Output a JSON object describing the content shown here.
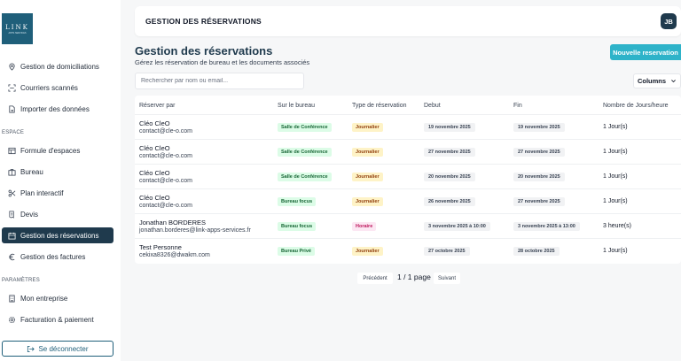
{
  "sidebar": {
    "logo_text": "LINK",
    "logo_sub": "APPS·SERVICES",
    "items_top": [
      {
        "label": "Gestion de domiciliations",
        "icon": "map-pin-icon"
      },
      {
        "label": "Courriers scannés",
        "icon": "scan-icon"
      },
      {
        "label": "Importer des données",
        "icon": "file-import-icon"
      }
    ],
    "section_espace": "ESPACE",
    "items_espace": [
      {
        "label": "Formule d'espaces",
        "icon": "grid-icon"
      },
      {
        "label": "Bureau",
        "icon": "briefcase-icon"
      },
      {
        "label": "Plan interactif",
        "icon": "scissors-icon"
      },
      {
        "label": "Devis",
        "icon": "receipt-icon"
      },
      {
        "label": "Gestion des réservations",
        "icon": "calendar-icon"
      },
      {
        "label": "Gestion des factures",
        "icon": "euro-icon"
      }
    ],
    "section_parametres": "PARAMÈTRES",
    "items_params": [
      {
        "label": "Mon entreprise",
        "icon": "building-icon"
      },
      {
        "label": "Facturation & paiement",
        "icon": "gear-icon"
      }
    ],
    "logout_label": "Se déconnecter"
  },
  "header": {
    "title": "GESTION DES RÉSERVATIONS",
    "avatar_initials": "JB"
  },
  "main": {
    "title": "Gestion des réservations",
    "subtitle": "Gérez les réservation de bureau et les documents associés",
    "new_button": "Nouvelle reservation",
    "search_placeholder": "Rechercher par nom ou email...",
    "columns_button": "Columns"
  },
  "table": {
    "headers": [
      "Réserver par",
      "Sur le bureau",
      "Type de réservation",
      "Debut",
      "Fin",
      "Nombre de Jours/heure"
    ],
    "rows": [
      {
        "name": "Cléo CleO",
        "email": "contact@cle-o.com",
        "bureau": "Salle de Conférence",
        "type": "Journalier",
        "debut": "19 novembre 2025",
        "fin": "19 novembre 2025",
        "duree": "1 Jour(s)"
      },
      {
        "name": "Cléo CleO",
        "email": "contact@cle-o.com",
        "bureau": "Salle de Conférence",
        "type": "Journalier",
        "debut": "27 novembre 2025",
        "fin": "27 novembre 2025",
        "duree": "1 Jour(s)"
      },
      {
        "name": "Cléo CleO",
        "email": "contact@cle-o.com",
        "bureau": "Salle de Conférence",
        "type": "Journalier",
        "debut": "20 novembre 2025",
        "fin": "20 novembre 2025",
        "duree": "1 Jour(s)"
      },
      {
        "name": "Cléo CleO",
        "email": "contact@cle-o.com",
        "bureau": "Bureau focus",
        "type": "Journalier",
        "debut": "26 novembre 2025",
        "fin": "27 novembre 2025",
        "duree": "1 Jour(s)"
      },
      {
        "name": "Jonathan BORDERES",
        "email": "jonathan.borderes@link-apps-services.fr",
        "bureau": "Bureau focus",
        "type": "Horaire",
        "debut": "3 novembre 2025 à 10:00",
        "fin": "3 novembre 2025 à 13:00",
        "duree": "3 heure(s)"
      },
      {
        "name": "Test Personne",
        "email": "cekixa8326@dwakm.com",
        "bureau": "Bureau Privé",
        "type": "Journalier",
        "debut": "27 octobre 2025",
        "fin": "28 octobre 2025",
        "duree": "1 Jour(s)"
      }
    ]
  },
  "pagination": {
    "prev": "Précédent",
    "info": "1 / 1 page",
    "next": "Suivant"
  },
  "colors": {
    "primary": "#1f3a4d",
    "accent": "#2eb3c9"
  }
}
